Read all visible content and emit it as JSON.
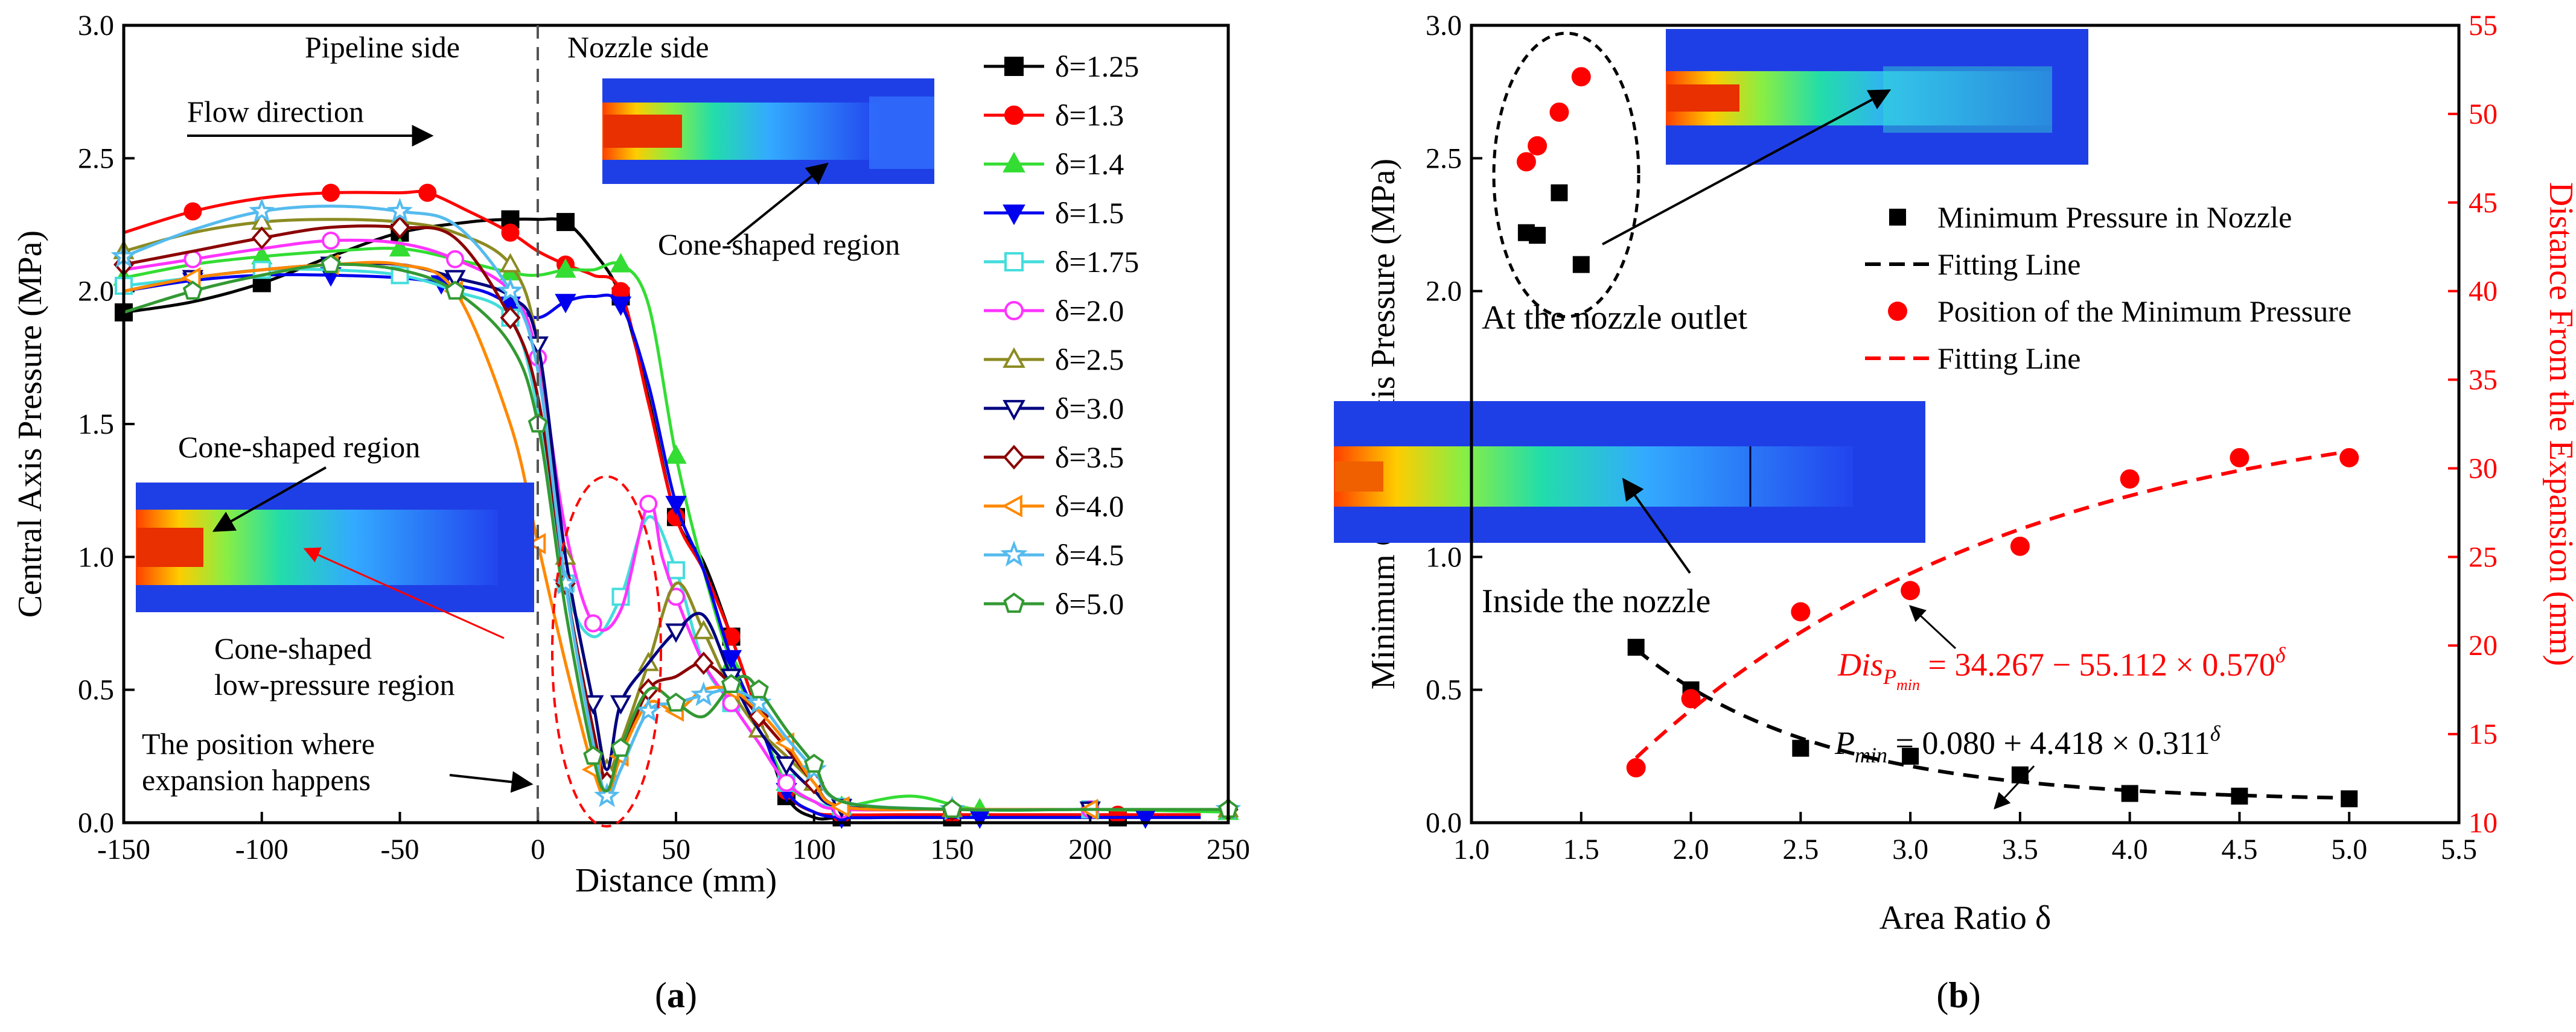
{
  "chart_data": [
    {
      "panel": "a",
      "type": "line",
      "panel_label": "(a)",
      "xlabel": "Distance (mm)",
      "ylabel": "Central Axis Pressure (MPa)",
      "xlim": [
        -150,
        250
      ],
      "ylim": [
        0,
        3.0
      ],
      "xticks": [
        -150,
        -100,
        -50,
        0,
        50,
        100,
        150,
        200,
        250
      ],
      "yticks": [
        0.0,
        0.5,
        1.0,
        1.5,
        2.0,
        2.5,
        3.0
      ],
      "annotations": {
        "pipeline_side": "Pipeline side",
        "nozzle_side": "Nozzle side",
        "flow_direction": "Flow direction",
        "cone_top": "Cone-shaped region",
        "cone_left": "Cone-shaped region",
        "cone_low_line1": "Cone-shaped",
        "cone_low_line2": "low-pressure region",
        "expansion_line1": "The position where",
        "expansion_line2": "expansion happens"
      },
      "series": [
        {
          "name": "δ=1.25",
          "color": "#000000",
          "marker": "square",
          "filled": true,
          "x": [
            -150,
            -125,
            -100,
            -75,
            -50,
            -25,
            -10,
            0,
            10,
            20,
            30,
            40,
            50,
            60,
            70,
            80,
            90,
            100,
            110,
            130,
            150,
            180,
            210,
            240
          ],
          "y": [
            1.92,
            1.96,
            2.03,
            2.13,
            2.22,
            2.26,
            2.27,
            2.27,
            2.26,
            2.15,
            1.98,
            1.6,
            1.15,
            0.98,
            0.7,
            0.4,
            0.1,
            0.02,
            0.02,
            0.02,
            0.02,
            0.02,
            0.02,
            0.02
          ]
        },
        {
          "name": "δ=1.3",
          "color": "#ff0000",
          "marker": "circle",
          "filled": true,
          "x": [
            -150,
            -125,
            -100,
            -75,
            -50,
            -40,
            -25,
            -10,
            0,
            10,
            20,
            30,
            40,
            50,
            60,
            70,
            80,
            90,
            100,
            110,
            130,
            150,
            180,
            210,
            240
          ],
          "y": [
            2.22,
            2.3,
            2.35,
            2.37,
            2.37,
            2.37,
            2.3,
            2.22,
            2.15,
            2.1,
            2.06,
            2.0,
            1.58,
            1.15,
            0.95,
            0.7,
            0.4,
            0.12,
            0.04,
            0.03,
            0.03,
            0.03,
            0.03,
            0.03,
            0.03
          ]
        },
        {
          "name": "δ=1.4",
          "color": "#33dd33",
          "marker": "triangle-up",
          "filled": true,
          "x": [
            -150,
            -125,
            -100,
            -75,
            -50,
            -30,
            -10,
            0,
            10,
            20,
            30,
            40,
            50,
            60,
            70,
            80,
            90,
            100,
            110,
            135,
            160,
            200,
            250
          ],
          "y": [
            2.05,
            2.1,
            2.13,
            2.15,
            2.16,
            2.12,
            2.07,
            2.06,
            2.08,
            2.08,
            2.1,
            1.95,
            1.38,
            0.95,
            0.6,
            0.38,
            0.15,
            0.08,
            0.06,
            0.1,
            0.05,
            0.05,
            0.04
          ]
        },
        {
          "name": "δ=1.5",
          "color": "#0000ee",
          "marker": "triangle-down",
          "filled": true,
          "x": [
            -150,
            -125,
            -100,
            -75,
            -50,
            -35,
            -20,
            -10,
            0,
            10,
            20,
            30,
            40,
            50,
            60,
            70,
            80,
            90,
            100,
            110,
            130,
            160,
            190,
            220,
            240
          ],
          "y": [
            2.0,
            2.04,
            2.06,
            2.06,
            2.05,
            2.03,
            2.0,
            1.95,
            1.9,
            1.96,
            1.98,
            1.95,
            1.65,
            1.2,
            0.95,
            0.62,
            0.38,
            0.12,
            0.04,
            0.02,
            0.02,
            0.02,
            0.02,
            0.02,
            0.02
          ]
        },
        {
          "name": "δ=1.75",
          "color": "#44dddd",
          "marker": "square",
          "filled": false,
          "x": [
            -150,
            -125,
            -100,
            -75,
            -50,
            -30,
            -10,
            0,
            10,
            20,
            30,
            40,
            50,
            60,
            70,
            80,
            90,
            100,
            110,
            150,
            200,
            250
          ],
          "y": [
            2.02,
            2.05,
            2.08,
            2.08,
            2.06,
            2.0,
            1.9,
            1.55,
            0.9,
            0.7,
            0.85,
            1.15,
            0.95,
            0.6,
            0.45,
            0.3,
            0.15,
            0.08,
            0.06,
            0.05,
            0.05,
            0.05
          ]
        },
        {
          "name": "δ=2.0",
          "color": "#ff33ff",
          "marker": "circle",
          "filled": false,
          "x": [
            -150,
            -125,
            -100,
            -75,
            -50,
            -30,
            -10,
            0,
            10,
            20,
            30,
            40,
            45,
            50,
            60,
            70,
            80,
            90,
            100,
            110,
            150,
            200,
            250
          ],
          "y": [
            2.08,
            2.12,
            2.16,
            2.19,
            2.18,
            2.12,
            2.0,
            1.75,
            1.1,
            0.75,
            0.8,
            1.2,
            1.0,
            0.85,
            0.6,
            0.45,
            0.3,
            0.15,
            0.08,
            0.05,
            0.05,
            0.05,
            0.05
          ]
        },
        {
          "name": "δ=2.5",
          "color": "#8b8b22",
          "marker": "triangle-up",
          "filled": false,
          "x": [
            -150,
            -125,
            -100,
            -75,
            -50,
            -30,
            -10,
            0,
            10,
            20,
            25,
            30,
            40,
            50,
            60,
            70,
            80,
            90,
            100,
            110,
            150,
            200,
            250
          ],
          "y": [
            2.15,
            2.22,
            2.26,
            2.27,
            2.26,
            2.22,
            2.1,
            1.8,
            1.0,
            0.45,
            0.2,
            0.3,
            0.6,
            0.9,
            0.72,
            0.5,
            0.35,
            0.25,
            0.15,
            0.06,
            0.05,
            0.05,
            0.05
          ]
        },
        {
          "name": "δ=3.0",
          "color": "#00007f",
          "marker": "triangle-down",
          "filled": false,
          "x": [
            -150,
            -125,
            -100,
            -75,
            -50,
            -30,
            -10,
            0,
            10,
            20,
            25,
            30,
            40,
            50,
            60,
            70,
            80,
            90,
            100,
            110,
            150,
            200,
            250
          ],
          "y": [
            2.0,
            2.05,
            2.08,
            2.1,
            2.1,
            2.05,
            1.98,
            1.8,
            1.0,
            0.45,
            0.2,
            0.45,
            0.6,
            0.72,
            0.78,
            0.55,
            0.35,
            0.22,
            0.12,
            0.06,
            0.05,
            0.05,
            0.05
          ]
        },
        {
          "name": "δ=3.5",
          "color": "#8b0000",
          "marker": "diamond",
          "filled": false,
          "x": [
            -150,
            -125,
            -100,
            -75,
            -50,
            -30,
            -10,
            0,
            10,
            20,
            25,
            30,
            40,
            50,
            60,
            70,
            80,
            90,
            100,
            110,
            150,
            200,
            250
          ],
          "y": [
            2.1,
            2.15,
            2.2,
            2.24,
            2.24,
            2.2,
            1.9,
            1.6,
            0.9,
            0.35,
            0.15,
            0.25,
            0.5,
            0.55,
            0.6,
            0.52,
            0.4,
            0.28,
            0.15,
            0.06,
            0.05,
            0.05,
            0.05
          ]
        },
        {
          "name": "δ=4.0",
          "color": "#ff8800",
          "marker": "triangle-left",
          "filled": false,
          "x": [
            -150,
            -125,
            -100,
            -75,
            -50,
            -30,
            -10,
            0,
            10,
            20,
            25,
            30,
            40,
            50,
            60,
            70,
            80,
            90,
            100,
            110,
            150,
            200,
            250
          ],
          "y": [
            2.0,
            2.05,
            2.08,
            2.1,
            2.1,
            2.0,
            1.5,
            1.05,
            0.6,
            0.2,
            0.1,
            0.25,
            0.45,
            0.42,
            0.5,
            0.5,
            0.42,
            0.3,
            0.15,
            0.06,
            0.05,
            0.05,
            0.05
          ]
        },
        {
          "name": "δ=4.5",
          "color": "#55bbee",
          "marker": "star",
          "filled": false,
          "x": [
            -150,
            -125,
            -100,
            -75,
            -50,
            -30,
            -10,
            0,
            10,
            20,
            25,
            30,
            40,
            50,
            60,
            70,
            80,
            90,
            100,
            110,
            150,
            200,
            250
          ],
          "y": [
            2.13,
            2.23,
            2.3,
            2.32,
            2.3,
            2.25,
            2.0,
            1.7,
            0.9,
            0.3,
            0.1,
            0.2,
            0.42,
            0.45,
            0.48,
            0.5,
            0.45,
            0.32,
            0.2,
            0.08,
            0.05,
            0.05,
            0.05
          ]
        },
        {
          "name": "δ=5.0",
          "color": "#339933",
          "marker": "pentagon",
          "filled": false,
          "x": [
            -150,
            -125,
            -100,
            -75,
            -50,
            -30,
            -10,
            0,
            10,
            20,
            25,
            30,
            40,
            50,
            60,
            70,
            75,
            80,
            90,
            100,
            110,
            150,
            200,
            250
          ],
          "y": [
            1.92,
            2.0,
            2.06,
            2.1,
            2.08,
            2.0,
            1.8,
            1.5,
            0.8,
            0.25,
            0.12,
            0.28,
            0.5,
            0.45,
            0.4,
            0.52,
            0.55,
            0.5,
            0.35,
            0.22,
            0.08,
            0.05,
            0.05,
            0.05
          ]
        }
      ]
    },
    {
      "panel": "b",
      "type": "scatter",
      "panel_label": "(b)",
      "xlabel": "Area Ratio δ",
      "ylabel": "Minimum Central Axis Pressure (MPa)",
      "ylabel_right": "Distance From the Expansion (mm)",
      "xlim": [
        1.0,
        5.5
      ],
      "ylim": [
        0,
        3.0
      ],
      "ylim_right": [
        10,
        55
      ],
      "xticks": [
        1.0,
        1.5,
        2.0,
        2.5,
        3.0,
        3.5,
        4.0,
        4.5,
        5.0,
        5.5
      ],
      "yticks": [
        0.0,
        0.5,
        1.0,
        1.5,
        2.0,
        2.5,
        3.0
      ],
      "yticks_right": [
        10,
        15,
        20,
        25,
        30,
        35,
        40,
        45,
        50,
        55
      ],
      "annotations": {
        "outlet": "At the nozzle outlet",
        "inside": "Inside the nozzle"
      },
      "legend": [
        {
          "label": "Minimum Pressure in Nozzle",
          "kind": "square",
          "color": "#000000"
        },
        {
          "label": "Fitting Line",
          "kind": "dash",
          "color": "#000000"
        },
        {
          "label": "Position of the Minimum Pressure",
          "kind": "circle",
          "color": "#ff0000"
        },
        {
          "label": "Fitting Line",
          "kind": "dash",
          "color": "#ff0000"
        }
      ],
      "equations": {
        "pressure": {
          "lhs": "P",
          "sub": "min",
          "rhs": " = 0.080 + 4.418 × 0.311",
          "sup": "δ"
        },
        "distance": {
          "lhs": "Dis",
          "sub": "P",
          "subsub": "min",
          "rhs": " = 34.267 − 55.112 × 0.570",
          "sup": "δ"
        }
      },
      "series": [
        {
          "name": "Minimum Pressure in Nozzle",
          "axis": "left",
          "color": "#000000",
          "x": [
            1.25,
            1.3,
            1.4,
            1.5,
            1.75,
            2.0,
            2.5,
            3.0,
            3.5,
            4.0,
            4.5,
            5.0
          ],
          "y": [
            2.22,
            2.21,
            2.37,
            2.1,
            0.66,
            0.5,
            0.28,
            0.25,
            0.18,
            0.11,
            0.1,
            0.09
          ]
        },
        {
          "name": "Position of the Minimum Pressure",
          "axis": "right",
          "color": "#ff0000",
          "x": [
            1.25,
            1.3,
            1.4,
            1.5,
            1.75,
            2.0,
            2.5,
            3.0,
            3.5,
            4.0,
            4.5,
            5.0
          ],
          "y": [
            47.3,
            48.2,
            50.1,
            52.1,
            13.1,
            17.0,
            21.9,
            23.1,
            25.6,
            29.4,
            30.6,
            30.6
          ]
        }
      ],
      "fits": [
        {
          "axis": "left",
          "color": "#000000",
          "from": 1.75,
          "to": 5.0,
          "a": 0.08,
          "b": 4.418,
          "c": 0.311
        },
        {
          "axis": "right",
          "color": "#ff0000",
          "from": 1.75,
          "to": 5.0,
          "a": 34.267,
          "b": -55.112,
          "c": 0.57
        }
      ]
    }
  ]
}
